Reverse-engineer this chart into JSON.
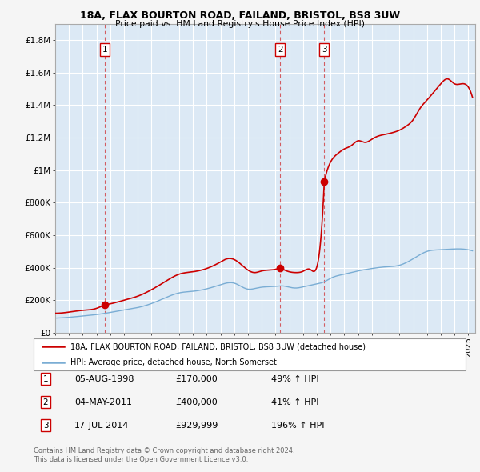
{
  "title": "18A, FLAX BOURTON ROAD, FAILAND, BRISTOL, BS8 3UW",
  "subtitle": "Price paid vs. HM Land Registry's House Price Index (HPI)",
  "legend_label_red": "18A, FLAX BOURTON ROAD, FAILAND, BRISTOL, BS8 3UW (detached house)",
  "legend_label_blue": "HPI: Average price, detached house, North Somerset",
  "footer_line1": "Contains HM Land Registry data © Crown copyright and database right 2024.",
  "footer_line2": "This data is licensed under the Open Government Licence v3.0.",
  "sales": [
    {
      "num": 1,
      "date": "05-AUG-1998",
      "price": 170000,
      "pct": "49% ↑ HPI"
    },
    {
      "num": 2,
      "date": "04-MAY-2011",
      "price": 400000,
      "pct": "41% ↑ HPI"
    },
    {
      "num": 3,
      "date": "17-JUL-2014",
      "price": 929999,
      "pct": "196% ↑ HPI"
    }
  ],
  "sale_dates_decimal": [
    1998.59,
    2011.34,
    2014.54
  ],
  "sale_prices": [
    170000,
    400000,
    929999
  ],
  "ylim": [
    0,
    1900000
  ],
  "xlim_start": 1995.0,
  "xlim_end": 2025.5,
  "red_color": "#cc0000",
  "blue_color": "#7aadd4",
  "dashed_color": "#cc0000",
  "grid_color": "#cccccc",
  "plot_bg_color": "#dce9f5",
  "background_color": "#f0f0f0",
  "sale_marker_color": "#cc0000",
  "yticks": [
    0,
    200000,
    400000,
    600000,
    800000,
    1000000,
    1200000,
    1400000,
    1600000,
    1800000
  ],
  "ytick_labels": [
    "£0",
    "£200K",
    "£400K",
    "£600K",
    "£800K",
    "£1M",
    "£1.2M",
    "£1.4M",
    "£1.6M",
    "£1.8M"
  ],
  "hpi_points": [
    [
      1995.0,
      90000
    ],
    [
      1996.0,
      95000
    ],
    [
      1997.0,
      103000
    ],
    [
      1998.0,
      112000
    ],
    [
      1999.0,
      125000
    ],
    [
      2000.0,
      140000
    ],
    [
      2001.0,
      155000
    ],
    [
      2002.0,
      180000
    ],
    [
      2003.0,
      215000
    ],
    [
      2004.0,
      245000
    ],
    [
      2005.0,
      255000
    ],
    [
      2006.0,
      270000
    ],
    [
      2007.0,
      295000
    ],
    [
      2008.0,
      305000
    ],
    [
      2008.5,
      285000
    ],
    [
      2009.0,
      268000
    ],
    [
      2009.5,
      272000
    ],
    [
      2010.0,
      280000
    ],
    [
      2011.0,
      285000
    ],
    [
      2011.5,
      288000
    ],
    [
      2012.0,
      280000
    ],
    [
      2012.5,
      275000
    ],
    [
      2013.0,
      282000
    ],
    [
      2014.0,
      300000
    ],
    [
      2014.5,
      312000
    ],
    [
      2015.0,
      335000
    ],
    [
      2016.0,
      360000
    ],
    [
      2017.0,
      380000
    ],
    [
      2018.0,
      395000
    ],
    [
      2019.0,
      405000
    ],
    [
      2020.0,
      415000
    ],
    [
      2021.0,
      455000
    ],
    [
      2022.0,
      500000
    ],
    [
      2023.0,
      510000
    ],
    [
      2024.0,
      515000
    ],
    [
      2025.0,
      510000
    ]
  ],
  "red_points_s1_base": [
    [
      1995.0,
      120000
    ],
    [
      1996.0,
      127000
    ],
    [
      1997.0,
      138000
    ],
    [
      1998.0,
      150000
    ],
    [
      1998.59,
      170000
    ]
  ],
  "red_points_s1_to_s2": [
    [
      1998.59,
      170000
    ],
    [
      1999.0,
      178000
    ],
    [
      2000.0,
      200000
    ],
    [
      2001.0,
      225000
    ],
    [
      2002.0,
      265000
    ],
    [
      2003.0,
      315000
    ],
    [
      2004.0,
      360000
    ],
    [
      2005.0,
      375000
    ],
    [
      2006.0,
      395000
    ],
    [
      2007.0,
      435000
    ],
    [
      2007.5,
      455000
    ],
    [
      2008.0,
      450000
    ],
    [
      2008.5,
      420000
    ],
    [
      2009.0,
      385000
    ],
    [
      2009.5,
      370000
    ],
    [
      2010.0,
      380000
    ],
    [
      2010.5,
      385000
    ],
    [
      2011.0,
      390000
    ],
    [
      2011.34,
      400000
    ]
  ],
  "red_points_s2_to_s3": [
    [
      2011.34,
      400000
    ],
    [
      2011.5,
      392000
    ],
    [
      2012.0,
      375000
    ],
    [
      2012.5,
      370000
    ],
    [
      2013.0,
      378000
    ],
    [
      2013.5,
      390000
    ],
    [
      2014.0,
      405000
    ],
    [
      2014.54,
      929999
    ]
  ],
  "red_points_s3_onwards": [
    [
      2014.54,
      929999
    ],
    [
      2015.0,
      1050000
    ],
    [
      2015.5,
      1100000
    ],
    [
      2016.0,
      1130000
    ],
    [
      2016.5,
      1150000
    ],
    [
      2017.0,
      1180000
    ],
    [
      2017.5,
      1170000
    ],
    [
      2018.0,
      1190000
    ],
    [
      2018.5,
      1210000
    ],
    [
      2019.0,
      1220000
    ],
    [
      2019.5,
      1230000
    ],
    [
      2020.0,
      1245000
    ],
    [
      2020.5,
      1270000
    ],
    [
      2021.0,
      1310000
    ],
    [
      2021.5,
      1380000
    ],
    [
      2022.0,
      1430000
    ],
    [
      2022.5,
      1480000
    ],
    [
      2023.0,
      1530000
    ],
    [
      2023.5,
      1560000
    ],
    [
      2024.0,
      1530000
    ],
    [
      2024.5,
      1530000
    ],
    [
      2025.0,
      1510000
    ]
  ]
}
